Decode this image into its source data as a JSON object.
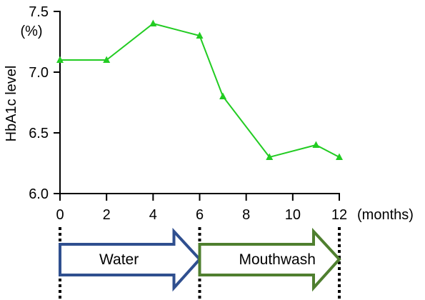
{
  "chart_data": {
    "type": "line",
    "ylabel": "HbA1c level",
    "yunit": "(%)",
    "xunit": "(months)",
    "xlim": [
      0,
      12
    ],
    "ylim": [
      6.0,
      7.5
    ],
    "xticks": [
      "0",
      "2",
      "4",
      "6",
      "8",
      "10",
      "12"
    ],
    "yticks": [
      "6.0",
      "6.5",
      "7.0",
      "7.5"
    ],
    "grid": false,
    "series": [
      {
        "x": [
          0,
          2,
          4,
          6,
          7,
          9,
          11,
          12
        ],
        "y": [
          7.1,
          7.1,
          7.4,
          7.3,
          6.8,
          6.3,
          6.4,
          6.3
        ],
        "color": "#22cc22",
        "marker": "triangle"
      }
    ],
    "phases": [
      {
        "label": "Water",
        "start": 0,
        "end": 6,
        "color": "#2f4f8f"
      },
      {
        "label": "Mouthwash",
        "start": 6,
        "end": 12,
        "color": "#4f7f2f"
      }
    ]
  }
}
